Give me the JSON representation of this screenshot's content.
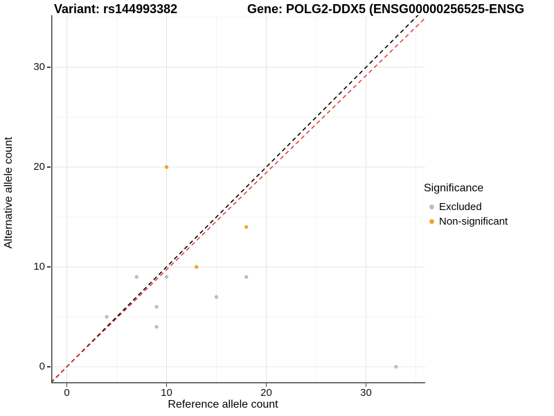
{
  "titles": {
    "variant": "Variant: rs144993382",
    "gene": "Gene: POLG2-DDX5 (ENSG00000256525-ENSG"
  },
  "legend": {
    "title": "Significance",
    "items": [
      {
        "label": "Excluded",
        "color": "#BEBEBE"
      },
      {
        "label": "Non-significant",
        "color": "#F7A22B"
      }
    ]
  },
  "chart_data": {
    "type": "scatter",
    "title_left": "Variant: rs144993382",
    "title_right": "Gene: POLG2-DDX5 (ENSG00000256525-ENSG",
    "xlabel": "Reference allele count",
    "ylabel": "Alternative allele count",
    "x_ticks": [
      0,
      10,
      20,
      30
    ],
    "y_ticks": [
      0,
      10,
      20,
      30
    ],
    "x_minor_ticks": [
      5,
      15,
      25,
      35
    ],
    "y_minor_ticks": [
      5,
      15,
      25,
      35
    ],
    "xlim": [
      -1.6,
      35.9
    ],
    "ylim": [
      -1.6,
      35.2
    ],
    "grid": true,
    "legend_position": "right",
    "colors": {
      "excluded": "#BEBEBE",
      "non_significant": "#F7A22B",
      "identity_line": "#000000",
      "trend_line": "#E8241C",
      "grid_major": "#e4e4e4",
      "grid_minor": "#f3f3f3",
      "axis_line": "#404040"
    },
    "series": [
      {
        "name": "Excluded",
        "color": "#BEBEBE",
        "points": [
          [
            4,
            5
          ],
          [
            7,
            9
          ],
          [
            9,
            4
          ],
          [
            9,
            6
          ],
          [
            10,
            9
          ],
          [
            15,
            7
          ],
          [
            18,
            9
          ],
          [
            33,
            0
          ]
        ]
      },
      {
        "name": "Non-significant",
        "color": "#F7A22B",
        "points": [
          [
            10,
            20
          ],
          [
            13,
            10
          ],
          [
            18,
            14
          ]
        ]
      }
    ],
    "ref_lines": [
      {
        "name": "identity",
        "slope": 1.0,
        "intercept": 0,
        "color": "#000000",
        "style": "dashed"
      },
      {
        "name": "trend",
        "slope": 0.972,
        "intercept": 0,
        "color": "#E8241C",
        "style": "dashed"
      }
    ]
  }
}
